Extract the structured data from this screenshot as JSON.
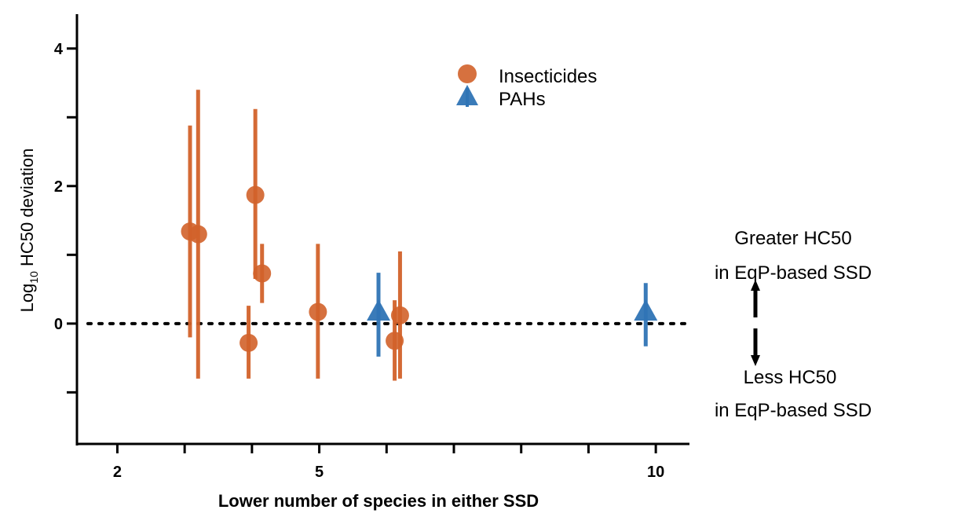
{
  "chart_data": {
    "type": "scatter",
    "xlabel": "Lower number of species in either SSD",
    "ylabel_prefix": "Log",
    "ylabel_subscript": "10",
    "ylabel_suffix": " HC50 deviation",
    "xlim": [
      1.4,
      10.5
    ],
    "ylim": [
      -1.75,
      4.5
    ],
    "xticks": [
      2,
      3,
      4,
      5,
      6,
      7,
      8,
      9,
      10
    ],
    "xticklabels": [
      "2",
      "",
      "",
      "5",
      "",
      "",
      "",
      "",
      "10"
    ],
    "yticks": [
      -1,
      0,
      1,
      2,
      3,
      4
    ],
    "yticklabels": [
      "",
      "0",
      "",
      "2",
      "",
      "4"
    ],
    "reference_line": {
      "y": 0,
      "style": "dotted"
    },
    "legend_position": "top-center",
    "grid": false,
    "series": [
      {
        "name": "Insecticides",
        "marker": "circle",
        "color": "#D2622A",
        "points": [
          {
            "x": 3.08,
            "y": 1.34,
            "ylo": -0.2,
            "yhi": 2.88
          },
          {
            "x": 3.2,
            "y": 1.3,
            "ylo": -0.8,
            "yhi": 3.4
          },
          {
            "x": 3.95,
            "y": -0.28,
            "ylo": -0.8,
            "yhi": 0.26
          },
          {
            "x": 4.05,
            "y": 1.87,
            "ylo": 0.65,
            "yhi": 3.12
          },
          {
            "x": 4.15,
            "y": 0.73,
            "ylo": 0.3,
            "yhi": 1.16
          },
          {
            "x": 4.98,
            "y": 0.17,
            "ylo": -0.8,
            "yhi": 1.16
          },
          {
            "x": 6.12,
            "y": -0.25,
            "ylo": -0.83,
            "yhi": 0.34
          },
          {
            "x": 6.2,
            "y": 0.12,
            "ylo": -0.8,
            "yhi": 1.05
          }
        ]
      },
      {
        "name": "PAHs",
        "marker": "triangle",
        "color": "#2F74B5",
        "points": [
          {
            "x": 5.88,
            "y": 0.17,
            "ylo": -0.48,
            "yhi": 0.74
          },
          {
            "x": 9.85,
            "y": 0.17,
            "ylo": -0.33,
            "yhi": 0.59
          }
        ]
      }
    ],
    "annotations": {
      "greater_line1": "Greater HC50",
      "greater_line2": "in EqP-based SSD",
      "less_line1": "Less HC50",
      "less_line2": "in EqP-based SSD"
    }
  }
}
